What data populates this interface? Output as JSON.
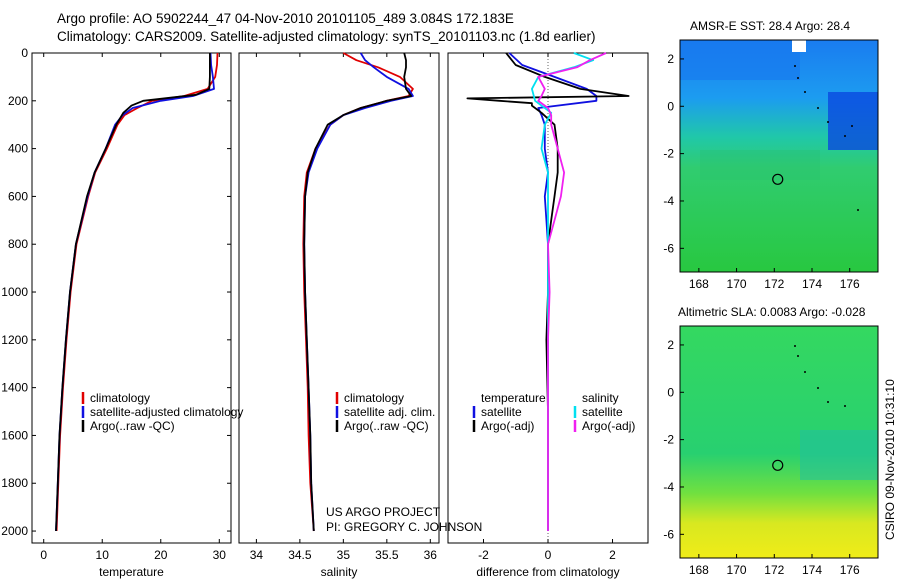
{
  "header": {
    "title_line1": "Argo profile: AO 5902244_47 04-Nov-2010 20101105_489 3.084S 172.183E",
    "title_line2": "Climatology: CARS2009. Satellite-adjusted climatology: synTS_20101103.nc (1.8d earlier)"
  },
  "footer": {
    "project": "US ARGO PROJECT",
    "pi": "PI: GREGORY C. JOHNSON",
    "stamp": "CSIRO 09-Nov-2010 10:31:10"
  },
  "colors": {
    "climatology": "#e00000",
    "satellite": "#1010e0",
    "argo": "#000000",
    "sal_sat": "#00e0f0",
    "sal_argo": "#f020f0"
  },
  "chart_data": [
    {
      "type": "line",
      "name": "temperature-profile",
      "xlabel": "temperature",
      "ylabel": "",
      "xlim": [
        -2,
        32
      ],
      "ylim": [
        2050,
        0
      ],
      "xticks": [
        0,
        10,
        20,
        30
      ],
      "yticks": [
        0,
        200,
        400,
        600,
        800,
        1000,
        1200,
        1400,
        1600,
        1800,
        2000
      ],
      "legend": [
        "climatology",
        "satellite-adjusted climatology",
        "Argo(..raw -QC)"
      ],
      "series": [
        {
          "name": "climatology",
          "color": "climatology",
          "depth": [
            0,
            50,
            100,
            150,
            180,
            200,
            230,
            260,
            300,
            400,
            500,
            600,
            800,
            1000,
            1200,
            1400,
            1600,
            1800,
            2000
          ],
          "values": [
            29.7,
            29.6,
            29.3,
            28.0,
            24.0,
            18.5,
            16.0,
            13.8,
            12.6,
            10.8,
            8.8,
            7.6,
            5.6,
            4.6,
            3.9,
            3.3,
            2.8,
            2.5,
            2.2
          ]
        },
        {
          "name": "satellite-adjusted climatology",
          "color": "satellite",
          "depth": [
            0,
            50,
            100,
            150,
            180,
            200,
            230,
            260,
            300,
            400,
            500,
            600,
            800,
            1000,
            1200,
            1400,
            1600,
            1800,
            2000
          ],
          "values": [
            28.5,
            28.6,
            28.9,
            29.1,
            25.5,
            20.0,
            15.2,
            13.5,
            12.2,
            10.6,
            8.7,
            7.5,
            5.5,
            4.5,
            3.8,
            3.2,
            2.7,
            2.4,
            2.1
          ]
        },
        {
          "name": "Argo(..raw -QC)",
          "color": "argo",
          "depth": [
            0,
            50,
            100,
            150,
            175,
            200,
            220,
            250,
            300,
            400,
            500,
            600,
            800,
            1000,
            1200,
            1400,
            1600,
            1800,
            2000
          ],
          "values": [
            28.4,
            28.4,
            28.4,
            28.3,
            26.0,
            17.0,
            15.0,
            13.6,
            12.4,
            10.6,
            8.7,
            7.4,
            5.5,
            4.5,
            3.8,
            3.2,
            2.7,
            2.4,
            2.1
          ]
        }
      ]
    },
    {
      "type": "line",
      "name": "salinity-profile",
      "xlabel": "salinity",
      "ylabel": "",
      "xlim": [
        33.8,
        36.1
      ],
      "ylim": [
        2050,
        0
      ],
      "xticks": [
        34,
        34.5,
        35,
        35.5,
        36
      ],
      "yticks": [],
      "legend": [
        "climatology",
        "satellite adj. clim.",
        "Argo(..raw -QC)"
      ],
      "series": [
        {
          "name": "climatology",
          "color": "climatology",
          "depth": [
            0,
            30,
            60,
            100,
            150,
            180,
            200,
            230,
            260,
            300,
            400,
            500,
            600,
            800,
            1000,
            1200,
            1400,
            1600,
            1800,
            2000
          ],
          "values": [
            35.0,
            35.15,
            35.4,
            35.65,
            35.8,
            35.75,
            35.5,
            35.2,
            35.0,
            34.85,
            34.68,
            34.58,
            34.55,
            34.54,
            34.55,
            34.57,
            34.59,
            34.6,
            34.62,
            34.66
          ]
        },
        {
          "name": "satellite adj. clim.",
          "color": "satellite",
          "depth": [
            0,
            30,
            60,
            100,
            150,
            180,
            200,
            230,
            260,
            300,
            400,
            500,
            600,
            800,
            1000,
            1200,
            1400,
            1600,
            1800,
            2000
          ],
          "values": [
            35.2,
            35.25,
            35.35,
            35.5,
            35.75,
            35.8,
            35.55,
            35.25,
            35.0,
            34.85,
            34.7,
            34.6,
            34.56,
            34.55,
            34.56,
            34.58,
            34.6,
            34.62,
            34.63,
            34.66
          ]
        },
        {
          "name": "Argo(..raw -QC)",
          "color": "argo",
          "depth": [
            0,
            30,
            60,
            100,
            150,
            180,
            200,
            230,
            260,
            300,
            400,
            500,
            600,
            800,
            1000,
            1200,
            1400,
            1600,
            1800,
            2000
          ],
          "values": [
            35.7,
            35.72,
            35.72,
            35.7,
            35.72,
            35.78,
            35.5,
            35.2,
            35.0,
            34.82,
            34.68,
            34.59,
            34.56,
            34.55,
            34.56,
            34.58,
            34.6,
            34.62,
            34.63,
            34.66
          ]
        }
      ]
    },
    {
      "type": "line",
      "name": "difference-profile",
      "xlabel": "difference from climatology",
      "ylabel": "",
      "xlim": [
        -3.1,
        3.1
      ],
      "ylim": [
        2050,
        0
      ],
      "xticks": [
        -2,
        0,
        2
      ],
      "yticks": [],
      "legend_temperature_title": "temperature",
      "legend_salinity_title": "salinity",
      "legend": [
        "satellite",
        "Argo(-adj)",
        "satellite",
        "Argo(-adj)"
      ],
      "series": [
        {
          "name": "temperature satellite",
          "color": "satellite",
          "depth": [
            0,
            50,
            100,
            150,
            180,
            200,
            230,
            260,
            300,
            400,
            500,
            600,
            700,
            800,
            1000,
            1200,
            1500,
            2000
          ],
          "values": [
            -1.2,
            -0.8,
            0.2,
            1.2,
            1.5,
            1.5,
            -0.3,
            -0.2,
            -0.1,
            -0.1,
            0.0,
            -0.1,
            -0.05,
            0.0,
            0.0,
            0.0,
            0.0,
            0.0
          ]
        },
        {
          "name": "temperature Argo(-adj)",
          "color": "argo",
          "depth": [
            0,
            50,
            100,
            150,
            180,
            190,
            200,
            210,
            220,
            250,
            300,
            400,
            500,
            600,
            700,
            800,
            1000,
            1200,
            1500,
            2000
          ],
          "values": [
            -1.3,
            -1.0,
            -0.1,
            1.0,
            2.5,
            -2.5,
            -1.5,
            -0.5,
            -0.5,
            -0.2,
            0.2,
            0.3,
            0.3,
            0.2,
            0.1,
            0.0,
            0.0,
            -0.05,
            0.0,
            0.0
          ]
        },
        {
          "name": "salinity satellite",
          "color": "sal_sat",
          "depth": [
            0,
            30,
            60,
            100,
            150,
            200,
            250,
            300,
            400,
            500,
            600,
            800,
            1000,
            1200,
            1500,
            2000
          ],
          "values": [
            0.8,
            1.4,
            0.8,
            -0.3,
            -0.5,
            -0.4,
            0.1,
            -0.1,
            -0.2,
            0.0,
            0.0,
            0.0,
            0.0,
            0.0,
            0.0,
            0.0
          ]
        },
        {
          "name": "salinity Argo(-adj)",
          "color": "sal_argo",
          "depth": [
            0,
            30,
            60,
            100,
            150,
            180,
            200,
            230,
            260,
            300,
            400,
            500,
            600,
            700,
            800,
            1000,
            1200,
            1500,
            2000
          ],
          "values": [
            1.8,
            1.3,
            0.9,
            -0.3,
            -0.1,
            -0.2,
            -0.3,
            0.0,
            0.1,
            0.1,
            0.3,
            0.5,
            0.4,
            0.2,
            0.0,
            0.05,
            0.0,
            0.0,
            0.0
          ]
        }
      ]
    },
    {
      "type": "heatmap",
      "name": "sst-map",
      "title": "AMSR-E SST: 28.4 Argo: 28.4",
      "xlim": [
        167,
        177.5
      ],
      "ylim": [
        -7,
        2.8
      ],
      "xticks": [
        168,
        170,
        172,
        174,
        176
      ],
      "yticks": [
        2,
        0,
        -2,
        -4,
        -6
      ],
      "marker": {
        "lon": 172.183,
        "lat": -3.084
      }
    },
    {
      "type": "heatmap",
      "name": "sla-map",
      "title": "Altimetric SLA: 0.0083 Argo: -0.028",
      "xlim": [
        167,
        177.5
      ],
      "ylim": [
        -7,
        2.8
      ],
      "xticks": [
        168,
        170,
        172,
        174,
        176
      ],
      "yticks": [
        2,
        0,
        -2,
        -4,
        -6
      ],
      "marker": {
        "lon": 172.183,
        "lat": -3.084
      }
    }
  ]
}
